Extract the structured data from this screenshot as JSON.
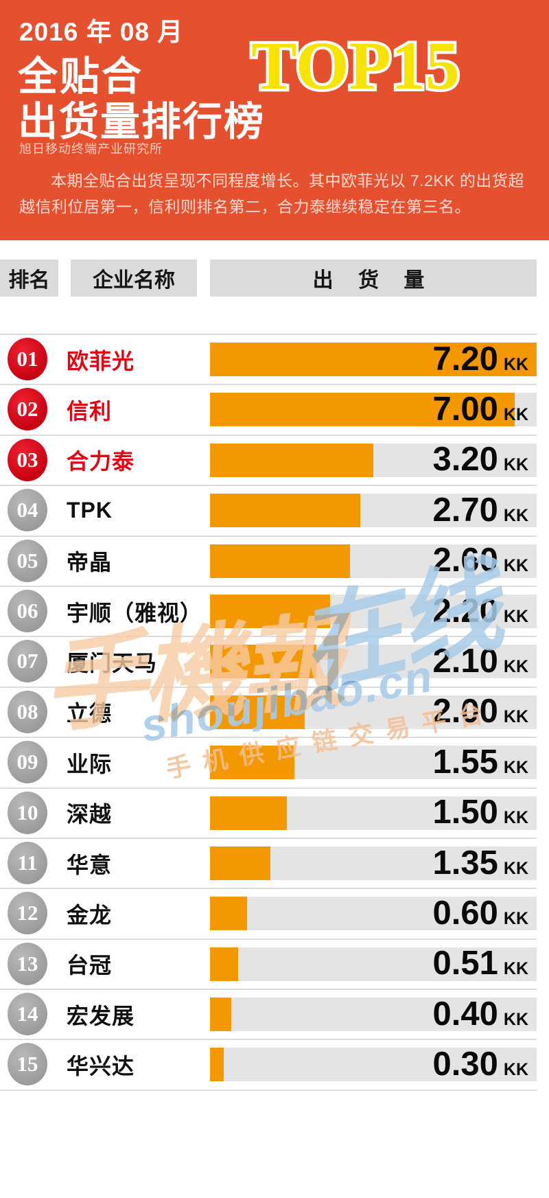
{
  "colors": {
    "accent_orange": "#E5512F",
    "bar_orange": "#F39800",
    "highlight_red": "#E50011",
    "top15_yellow": "#F7E300",
    "track_gray": "#E4E4E4",
    "header_cell_gray": "#DBDBDB"
  },
  "header": {
    "date": "2016 年 08 月",
    "title_line1": "全贴合",
    "title_line2": "出货量排行榜",
    "top_badge": "TOP15",
    "org": "旭日移动终端产业研究所",
    "summary": "本期全贴合出货呈现不同程度增长。其中欧菲光以 7.2KK 的出货超越信利位居第一，信利则排名第二，合力泰继续稳定在第三名。"
  },
  "table": {
    "headers": {
      "rank": "排名",
      "company": "企业名称",
      "volume": "出 货 量"
    },
    "unit": "KK",
    "rows": [
      {
        "rank": "01",
        "company": "欧菲光",
        "value": "7.20",
        "bar_pct": 100,
        "top3": true
      },
      {
        "rank": "02",
        "company": "信利",
        "value": "7.00",
        "bar_pct": 93.3,
        "top3": true
      },
      {
        "rank": "03",
        "company": "合力泰",
        "value": "3.20",
        "bar_pct": 50.0,
        "top3": true
      },
      {
        "rank": "04",
        "company": "TPK",
        "value": "2.70",
        "bar_pct": 46.0,
        "top3": false
      },
      {
        "rank": "05",
        "company": "帝晶",
        "value": "2.60",
        "bar_pct": 42.9,
        "top3": false
      },
      {
        "rank": "06",
        "company": "宇顺（雅视）",
        "value": "2.20",
        "bar_pct": 36.8,
        "top3": false
      },
      {
        "rank": "07",
        "company": "厦门天马",
        "value": "2.10",
        "bar_pct": 32.6,
        "top3": false
      },
      {
        "rank": "08",
        "company": "立德",
        "value": "2.00",
        "bar_pct": 29.0,
        "top3": false
      },
      {
        "rank": "09",
        "company": "业际",
        "value": "1.55",
        "bar_pct": 25.8,
        "top3": false
      },
      {
        "rank": "10",
        "company": "深越",
        "value": "1.50",
        "bar_pct": 23.5,
        "top3": false
      },
      {
        "rank": "11",
        "company": "华意",
        "value": "1.35",
        "bar_pct": 18.5,
        "top3": false
      },
      {
        "rank": "12",
        "company": "金龙",
        "value": "0.60",
        "bar_pct": 11.3,
        "top3": false
      },
      {
        "rank": "13",
        "company": "台冠",
        "value": "0.51",
        "bar_pct": 8.6,
        "top3": false
      },
      {
        "rank": "14",
        "company": "宏发展",
        "value": "0.40",
        "bar_pct": 6.5,
        "top3": false
      },
      {
        "rank": "15",
        "company": "华兴达",
        "value": "0.30",
        "bar_pct": 4.2,
        "top3": false
      }
    ]
  },
  "watermark": {
    "cn_big": "手機報",
    "zaixian": "在线",
    "url": "shoujibao.cn",
    "tagline": "手机供应链交易平台"
  },
  "chart_data": {
    "type": "bar",
    "orientation": "horizontal",
    "title": "2016年08月 全贴合出货量排行榜 TOP15",
    "subtitle": "旭日移动终端产业研究所",
    "categories": [
      "欧菲光",
      "信利",
      "合力泰",
      "TPK",
      "帝晶",
      "宇顺（雅视）",
      "厦门天马",
      "立德",
      "业际",
      "深越",
      "华意",
      "金龙",
      "台冠",
      "宏发展",
      "华兴达"
    ],
    "values": [
      7.2,
      7.0,
      3.2,
      2.7,
      2.6,
      2.2,
      2.1,
      2.0,
      1.55,
      1.5,
      1.35,
      0.6,
      0.51,
      0.4,
      0.3
    ],
    "unit": "KK",
    "xlabel": "出货量",
    "ylabel": "企业名称",
    "xlim": [
      0,
      7.2
    ],
    "grid": false,
    "legend": "none",
    "annotation": "本期全贴合出货呈现不同程度增长。其中欧菲光以 7.2KK 的出货超越信利位居第一，信利则排名第二，合力泰继续稳定在第三名。"
  }
}
